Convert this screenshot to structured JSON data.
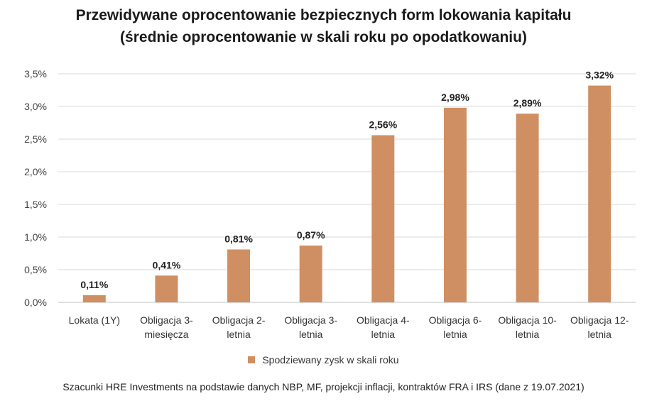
{
  "chart_data": {
    "type": "bar",
    "title": "Przewidywane oprocentowanie bezpiecznych form lokowania kapitału",
    "subtitle": "(średnie oprocentowanie w skali roku po opodatkowaniu)",
    "categories": [
      [
        "Lokata (1Y)"
      ],
      [
        "Obligacja 3-",
        "miesięcza"
      ],
      [
        "Obligacja 2-",
        "letnia"
      ],
      [
        "Obligacja 3-",
        "letnia"
      ],
      [
        "Obligacja 4-",
        "letnia"
      ],
      [
        "Obligacja 6-",
        "letnia"
      ],
      [
        "Obligacja 10-",
        "letnia"
      ],
      [
        "Obligacja 12-",
        "letnia"
      ]
    ],
    "series": [
      {
        "name": "Spodziewany zysk w skali roku",
        "values": [
          0.11,
          0.41,
          0.81,
          0.87,
          2.56,
          2.98,
          2.89,
          3.32
        ],
        "labels": [
          "0,11%",
          "0,41%",
          "0,81%",
          "0,87%",
          "2,56%",
          "2,98%",
          "2,89%",
          "3,32%"
        ]
      }
    ],
    "ylim": [
      0,
      3.5
    ],
    "yticks": [
      0,
      0.5,
      1.0,
      1.5,
      2.0,
      2.5,
      3.0,
      3.5
    ],
    "ytick_labels": [
      "0,0%",
      "0,5%",
      "1,0%",
      "1,5%",
      "2,0%",
      "2,5%",
      "3,0%",
      "3,5%"
    ],
    "grid": true,
    "legend_position": "bottom",
    "bar_color": "#D08F62",
    "grid_color": "#D9D9D9"
  },
  "source_note": "Szacunki HRE Investments na podstawie danych NBP, MF, projekcji inflacji, kontraktów FRA i IRS (dane z 19.07.2021)"
}
